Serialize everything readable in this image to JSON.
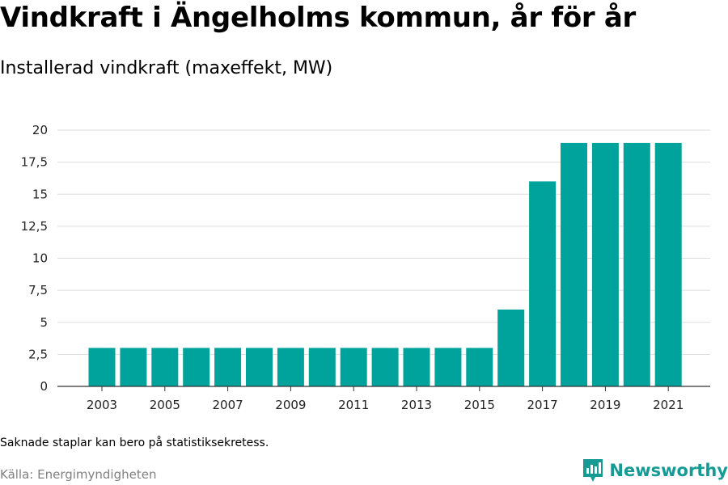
{
  "title": "Vindkraft i Ängelholms kommun, år för år",
  "subtitle": "Installerad vindkraft (maxeffekt, MW)",
  "note": "Saknade staplar kan bero på statistiksekretess.",
  "source": "Källa: Energimyndigheten",
  "brand": {
    "name": "Newsworthy",
    "icon": "newsworthy-logo-icon"
  },
  "colors": {
    "bar": "#00a39b",
    "grid": "#dddddd",
    "axis": "#333333",
    "brand": "#169a94"
  },
  "chart_data": {
    "type": "bar",
    "categories": [
      "2003",
      "2004",
      "2005",
      "2006",
      "2007",
      "2008",
      "2009",
      "2010",
      "2011",
      "2012",
      "2013",
      "2014",
      "2015",
      "2016",
      "2017",
      "2018",
      "2019",
      "2020",
      "2021"
    ],
    "values": [
      3,
      3,
      3,
      3,
      3,
      3,
      3,
      3,
      3,
      3,
      3,
      3,
      3,
      6,
      16,
      19,
      19,
      19,
      19
    ],
    "ylim": [
      0,
      20
    ],
    "yticks": [
      0,
      2.5,
      5,
      7.5,
      10,
      12.5,
      15,
      17.5,
      20
    ],
    "ytick_labels": [
      "0",
      "2,5",
      "5",
      "7,5",
      "10",
      "12,5",
      "15",
      "17,5",
      "20"
    ],
    "xtick_labels": [
      "2003",
      "2005",
      "2007",
      "2009",
      "2011",
      "2013",
      "2015",
      "2017",
      "2019",
      "2021"
    ],
    "grid": true,
    "xlabel": "",
    "ylabel": ""
  }
}
